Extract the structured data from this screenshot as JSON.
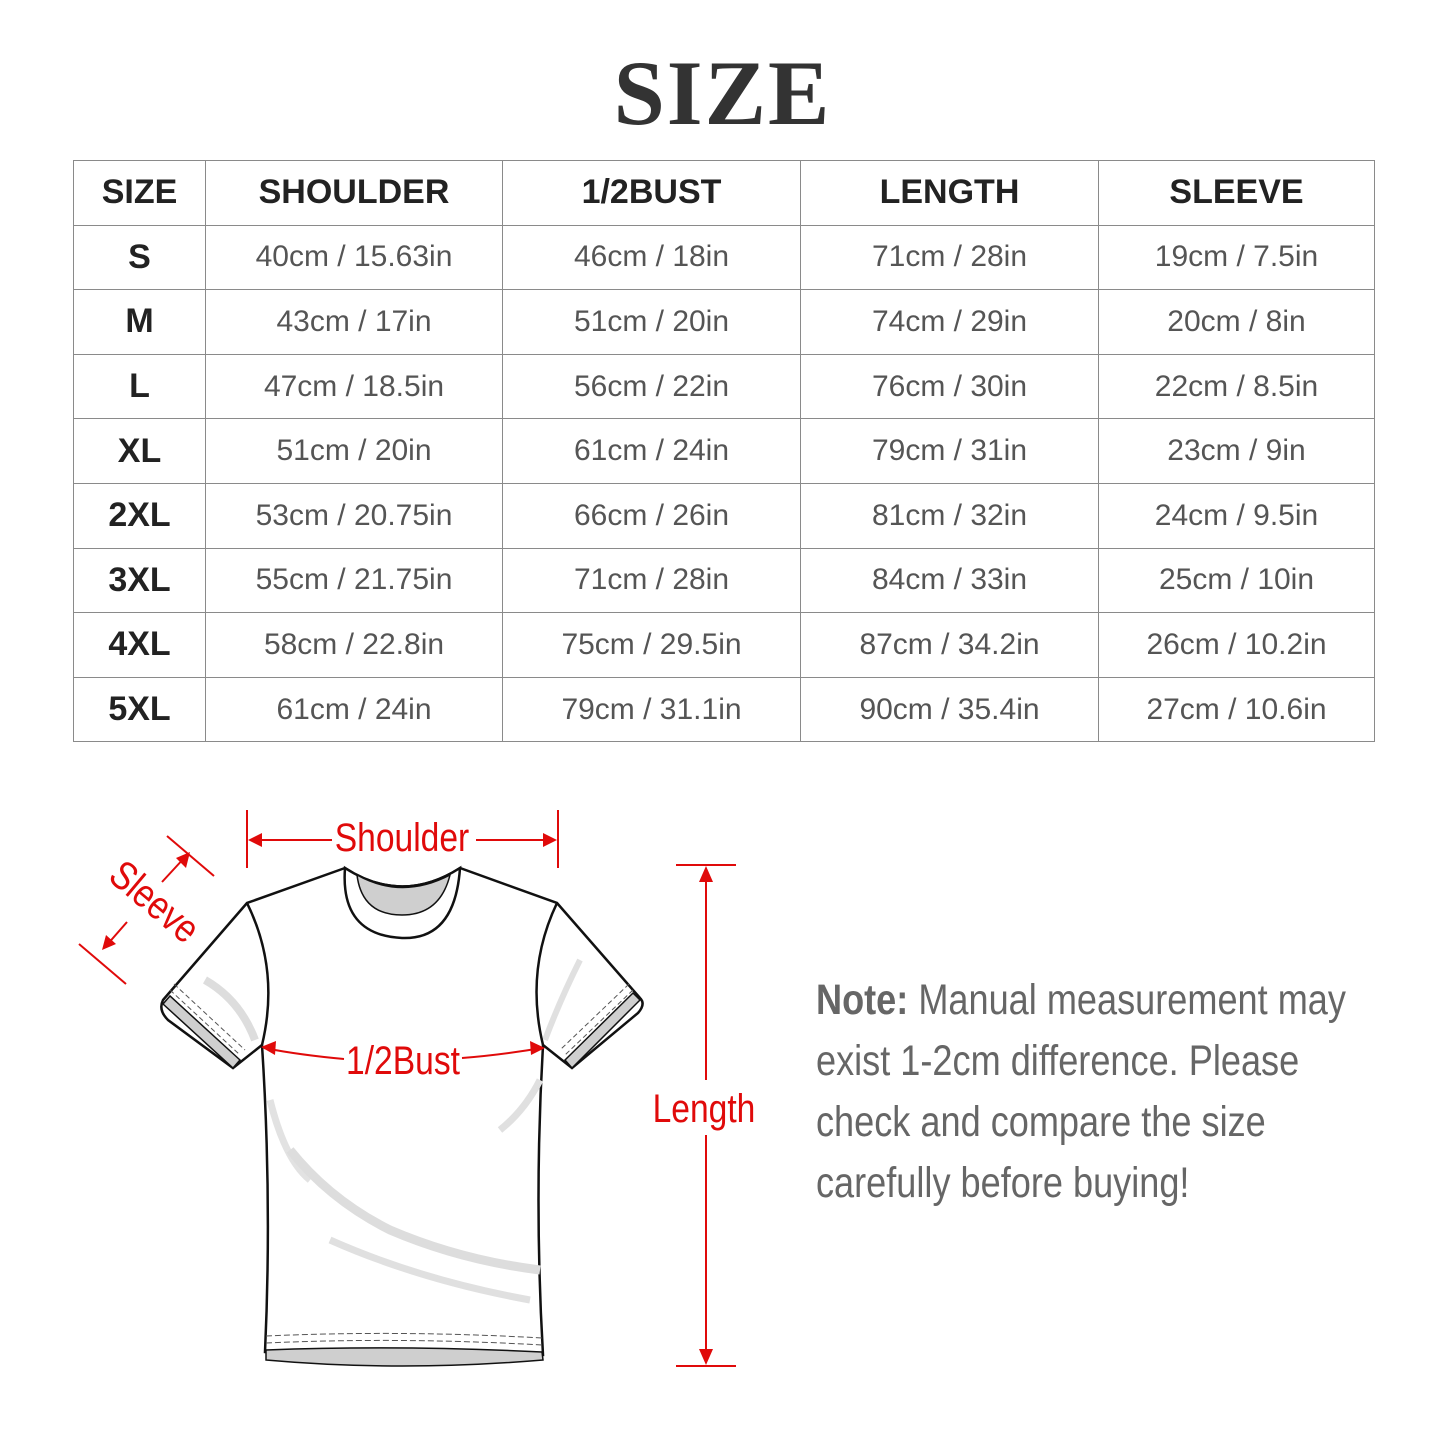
{
  "title": "SIZE",
  "table": {
    "headers": [
      "SIZE",
      "SHOULDER",
      "1/2BUST",
      "LENGTH",
      "SLEEVE"
    ],
    "rows": [
      [
        "S",
        "40cm / 15.63in",
        "46cm / 18in",
        "71cm / 28in",
        "19cm / 7.5in"
      ],
      [
        "M",
        "43cm / 17in",
        "51cm / 20in",
        "74cm / 29in",
        "20cm / 8in"
      ],
      [
        "L",
        "47cm / 18.5in",
        "56cm / 22in",
        "76cm / 30in",
        "22cm / 8.5in"
      ],
      [
        "XL",
        "51cm / 20in",
        "61cm / 24in",
        "79cm / 31in",
        "23cm / 9in"
      ],
      [
        "2XL",
        "53cm / 20.75in",
        "66cm / 26in",
        "81cm / 32in",
        "24cm / 9.5in"
      ],
      [
        "3XL",
        "55cm / 21.75in",
        "71cm / 28in",
        "84cm / 33in",
        "25cm / 10in"
      ],
      [
        "4XL",
        "58cm / 22.8in",
        "75cm / 29.5in",
        "87cm / 34.2in",
        "26cm / 10.2in"
      ],
      [
        "5XL",
        "61cm / 24in",
        "79cm / 31.1in",
        "90cm / 35.4in",
        "27cm / 10.6in"
      ]
    ]
  },
  "diagram": {
    "shoulder": "Shoulder",
    "sleeve": "Sleeve",
    "bust": "1/2Bust",
    "length": "Length",
    "accent_color": "#e00a0a"
  },
  "note": {
    "label": "Note:",
    "line1": " Manual measurement may",
    "line2": "exist 1-2cm difference. Please",
    "line3": "check and compare the size",
    "line4": "carefully before buying!"
  }
}
